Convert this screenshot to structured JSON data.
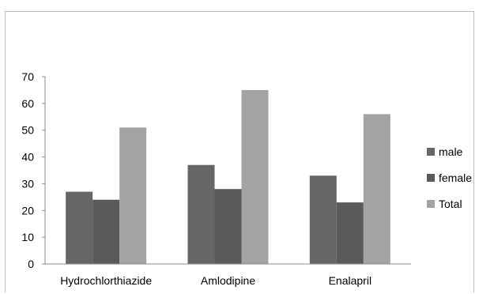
{
  "chart_data": {
    "type": "bar",
    "categories": [
      "Hydrochlorthiazide",
      "Amlodipine",
      "Enalapril"
    ],
    "series": [
      {
        "name": "male",
        "values": [
          27,
          37,
          33
        ],
        "color": "#666666"
      },
      {
        "name": "female",
        "values": [
          24,
          28,
          23
        ],
        "color": "#5a5a5a"
      },
      {
        "name": "Total",
        "values": [
          51,
          65,
          56
        ],
        "color": "#a3a3a3"
      }
    ],
    "ylim": [
      0,
      70
    ],
    "yticks": [
      0,
      10,
      20,
      30,
      40,
      50,
      60,
      70
    ],
    "grid": false,
    "legend_position": "right",
    "axis_color": "#8c8c8c"
  }
}
